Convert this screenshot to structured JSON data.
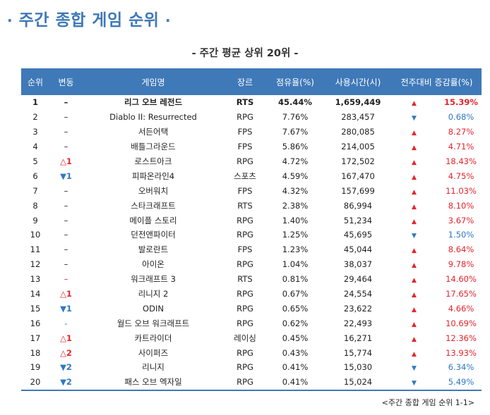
{
  "header": {
    "title_dot_left": "·",
    "title": "주간 종합 게임 순위",
    "title_dot_right": "·",
    "subtitle": "- 주간 평균 상위 20위 -"
  },
  "table": {
    "columns": [
      "순위",
      "변동",
      "게임명",
      "장르",
      "점유율(%)",
      "사용시간(시)",
      "전주대비 증감률(%)"
    ],
    "colors": {
      "header_bg": "#3f79b8",
      "up": "#e5232b",
      "down": "#2f78c2"
    },
    "rows": [
      {
        "rank": "1",
        "change": "–",
        "change_dir": "none",
        "name": "리그 오브 레전드",
        "genre": "RTS",
        "share": "45.44%",
        "hours": "1,659,449",
        "dir": "up",
        "rate": "15.39%"
      },
      {
        "rank": "2",
        "change": "–",
        "change_dir": "none",
        "name": "Diablo II: Resurrected",
        "genre": "RPG",
        "share": "7.76%",
        "hours": "283,457",
        "dir": "down",
        "rate": "0.68%"
      },
      {
        "rank": "3",
        "change": "–",
        "change_dir": "none",
        "name": "서든어택",
        "genre": "FPS",
        "share": "7.67%",
        "hours": "280,085",
        "dir": "up",
        "rate": "8.27%"
      },
      {
        "rank": "4",
        "change": "–",
        "change_dir": "none",
        "name": "배틀그라운드",
        "genre": "FPS",
        "share": "5.86%",
        "hours": "214,005",
        "dir": "up",
        "rate": "4.71%"
      },
      {
        "rank": "5",
        "change": "△1",
        "change_dir": "up",
        "name": "로스트아크",
        "genre": "RPG",
        "share": "4.72%",
        "hours": "172,502",
        "dir": "up",
        "rate": "18.43%"
      },
      {
        "rank": "6",
        "change": "▼1",
        "change_dir": "down",
        "name": "피파온라인4",
        "genre": "스포츠",
        "share": "4.59%",
        "hours": "167,470",
        "dir": "up",
        "rate": "4.75%"
      },
      {
        "rank": "7",
        "change": "–",
        "change_dir": "none",
        "name": "오버워치",
        "genre": "FPS",
        "share": "4.32%",
        "hours": "157,699",
        "dir": "up",
        "rate": "11.03%"
      },
      {
        "rank": "8",
        "change": "–",
        "change_dir": "none",
        "name": "스타크래프트",
        "genre": "RTS",
        "share": "2.38%",
        "hours": "86,994",
        "dir": "up",
        "rate": "8.10%"
      },
      {
        "rank": "9",
        "change": "–",
        "change_dir": "none",
        "name": "메이플 스토리",
        "genre": "RPG",
        "share": "1.40%",
        "hours": "51,234",
        "dir": "up",
        "rate": "3.67%"
      },
      {
        "rank": "10",
        "change": "–",
        "change_dir": "none",
        "name": "던전앤파이터",
        "genre": "RPG",
        "share": "1.25%",
        "hours": "45,695",
        "dir": "down",
        "rate": "1.50%"
      },
      {
        "rank": "11",
        "change": "–",
        "change_dir": "none",
        "name": "발로란트",
        "genre": "FPS",
        "share": "1.23%",
        "hours": "45,044",
        "dir": "up",
        "rate": "8.64%"
      },
      {
        "rank": "12",
        "change": "–",
        "change_dir": "none",
        "name": "아이온",
        "genre": "RPG",
        "share": "1.04%",
        "hours": "38,037",
        "dir": "up",
        "rate": "9.78%"
      },
      {
        "rank": "13",
        "change": "–",
        "change_dir": "none-red",
        "name": "워크래프트 3",
        "genre": "RTS",
        "share": "0.81%",
        "hours": "29,464",
        "dir": "up",
        "rate": "14.60%"
      },
      {
        "rank": "14",
        "change": "△1",
        "change_dir": "up",
        "name": "리니지 2",
        "genre": "RPG",
        "share": "0.67%",
        "hours": "24,554",
        "dir": "up",
        "rate": "17.65%"
      },
      {
        "rank": "15",
        "change": "▼1",
        "change_dir": "down",
        "name": "ODIN",
        "genre": "RPG",
        "share": "0.65%",
        "hours": "23,622",
        "dir": "up",
        "rate": "4.66%"
      },
      {
        "rank": "16",
        "change": "-",
        "change_dir": "none-blue",
        "name": "월드 오브 워크래프트",
        "genre": "RPG",
        "share": "0.62%",
        "hours": "22,493",
        "dir": "up",
        "rate": "10.69%"
      },
      {
        "rank": "17",
        "change": "△1",
        "change_dir": "up",
        "name": "카트라이더",
        "genre": "레이싱",
        "share": "0.45%",
        "hours": "16,271",
        "dir": "up",
        "rate": "12.36%"
      },
      {
        "rank": "18",
        "change": "△2",
        "change_dir": "up",
        "name": "사이퍼즈",
        "genre": "RPG",
        "share": "0.43%",
        "hours": "15,774",
        "dir": "up",
        "rate": "13.93%"
      },
      {
        "rank": "19",
        "change": "▼2",
        "change_dir": "down",
        "name": "리니지",
        "genre": "RPG",
        "share": "0.41%",
        "hours": "15,030",
        "dir": "down",
        "rate": "6.34%"
      },
      {
        "rank": "20",
        "change": "▼2",
        "change_dir": "down",
        "name": "패스 오브 엑자일",
        "genre": "RPG",
        "share": "0.41%",
        "hours": "15,024",
        "dir": "down",
        "rate": "5.49%"
      }
    ]
  },
  "footnote": "<주간 종합 게임 순위 1-1>"
}
